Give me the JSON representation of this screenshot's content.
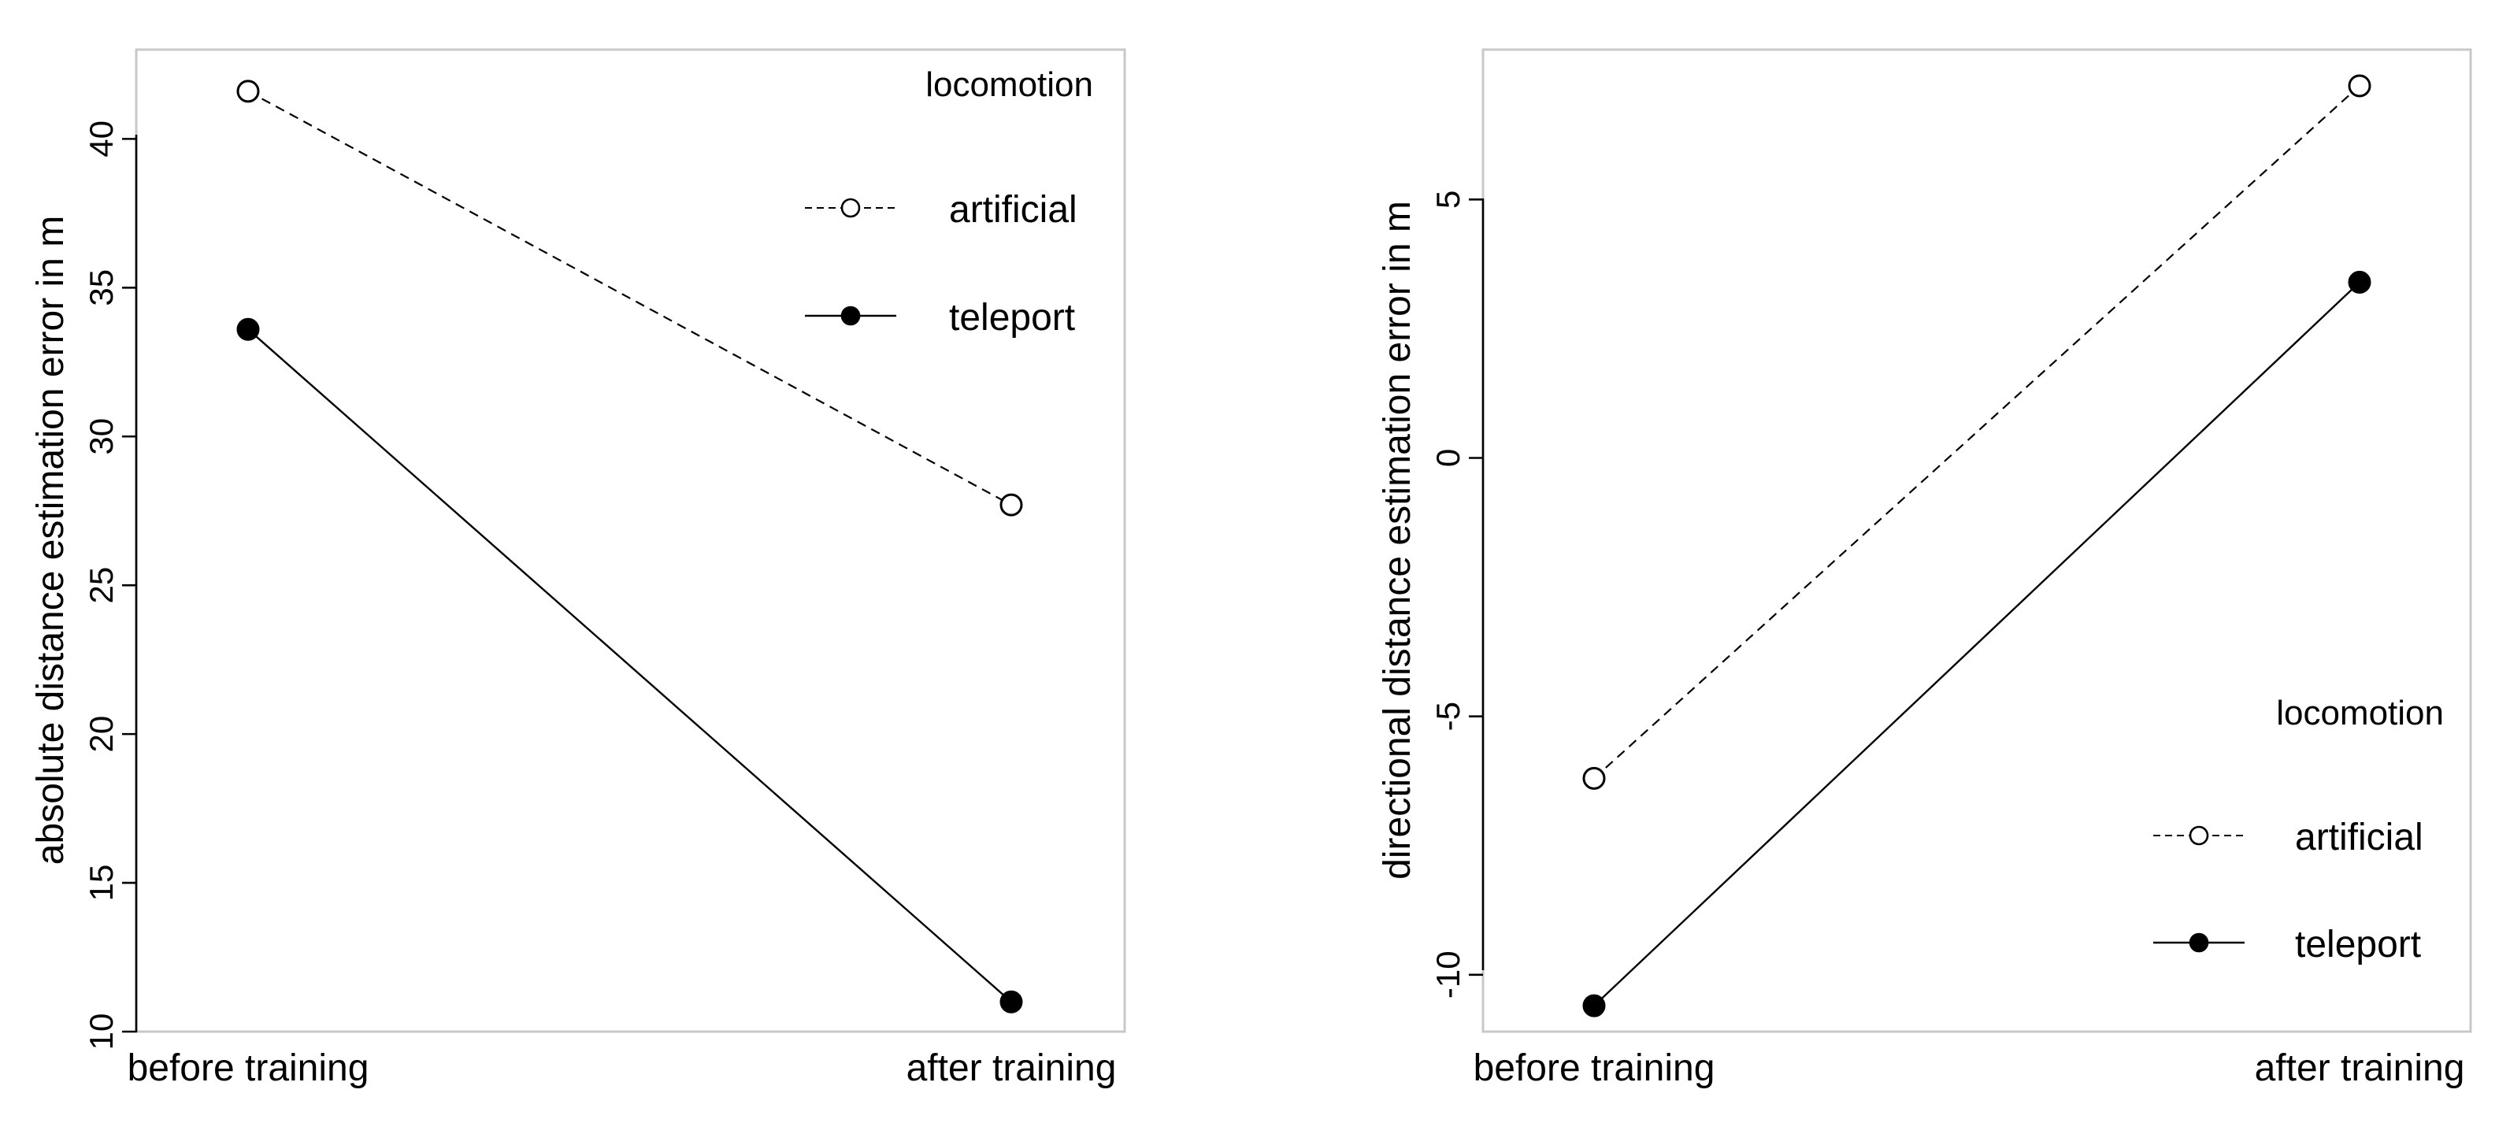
{
  "chart_data": [
    {
      "type": "line",
      "categories": [
        "before training",
        "after training"
      ],
      "ylabel": "absolute distance estimation error in m",
      "xlabel": "",
      "title": "",
      "ylim": [
        10,
        43
      ],
      "yticks": [
        10,
        15,
        20,
        25,
        30,
        35,
        40
      ],
      "grid": false,
      "legend": {
        "title": "locomotion",
        "placement": "top-right"
      },
      "series": [
        {
          "name": "artificial",
          "values": [
            41.6,
            27.7
          ],
          "line_style": "dashed",
          "marker": "open-circle"
        },
        {
          "name": "teleport",
          "values": [
            33.6,
            11.0
          ],
          "line_style": "solid",
          "marker": "filled-circle"
        }
      ]
    },
    {
      "type": "line",
      "categories": [
        "before training",
        "after training"
      ],
      "ylabel": "directional distance estimation error in m",
      "xlabel": "",
      "title": "",
      "ylim": [
        -11.1,
        7.9
      ],
      "yticks": [
        -10,
        -5,
        0,
        5
      ],
      "grid": false,
      "legend": {
        "title": "locomotion",
        "placement": "bottom-right"
      },
      "series": [
        {
          "name": "artificial",
          "values": [
            -6.2,
            7.2
          ],
          "line_style": "dashed",
          "marker": "open-circle"
        },
        {
          "name": "teleport",
          "values": [
            -10.6,
            3.4
          ],
          "line_style": "solid",
          "marker": "filled-circle"
        }
      ]
    }
  ],
  "colors": {
    "lines": "#000000",
    "frame": "#c8c8c8",
    "background": "#ffffff"
  }
}
